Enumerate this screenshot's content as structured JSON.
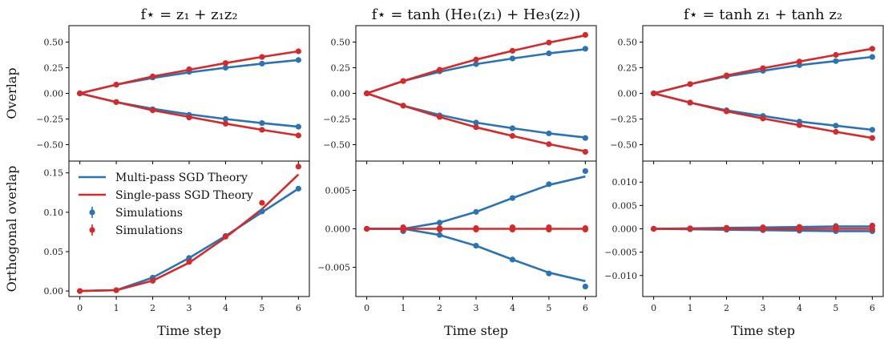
{
  "colors": {
    "multi": "#2a74b4",
    "single": "#d62a2a",
    "axis": "#000000"
  },
  "chart_data": [
    {
      "type": "line",
      "panel": "top-left",
      "title": "f⋆ = z₁ + z₁z₂",
      "xlabel": "",
      "ylabel": "Overlap",
      "x": [
        0,
        1,
        2,
        3,
        4,
        5,
        6
      ],
      "xlim": [
        -0.3,
        6.3
      ],
      "ylim": [
        -0.66,
        0.66
      ],
      "yticks": [
        -0.5,
        -0.25,
        0,
        0.25,
        0.5
      ],
      "ytick_labels": [
        "−0.50",
        "−0.25",
        "0.00",
        "0.25",
        "0.50"
      ],
      "series": [
        {
          "role": "multi-theory",
          "values": [
            0,
            0.085,
            0.15,
            0.205,
            0.25,
            0.29,
            0.325
          ]
        },
        {
          "role": "multi-theory",
          "values": [
            0,
            -0.085,
            -0.15,
            -0.205,
            -0.25,
            -0.29,
            -0.325
          ]
        },
        {
          "role": "single-theory",
          "values": [
            0,
            0.085,
            0.165,
            0.23,
            0.295,
            0.355,
            0.41
          ]
        },
        {
          "role": "single-theory",
          "values": [
            0,
            -0.085,
            -0.165,
            -0.23,
            -0.295,
            -0.355,
            -0.41
          ]
        },
        {
          "role": "multi-sim",
          "values": [
            0,
            0.085,
            0.155,
            0.21,
            0.25,
            0.29,
            0.325
          ]
        },
        {
          "role": "multi-sim",
          "values": [
            0,
            -0.085,
            -0.155,
            -0.21,
            -0.25,
            -0.29,
            -0.325
          ]
        },
        {
          "role": "single-sim",
          "values": [
            0,
            0.085,
            0.165,
            0.235,
            0.295,
            0.355,
            0.41
          ]
        },
        {
          "role": "single-sim",
          "values": [
            0,
            -0.085,
            -0.165,
            -0.235,
            -0.295,
            -0.355,
            -0.41
          ]
        }
      ]
    },
    {
      "type": "line",
      "panel": "top-middle",
      "title": "f⋆ = tanh (He₁(z₁) + He₃(z₂))",
      "xlabel": "",
      "ylabel": "",
      "x": [
        0,
        1,
        2,
        3,
        4,
        5,
        6
      ],
      "xlim": [
        -0.3,
        6.3
      ],
      "ylim": [
        -0.66,
        0.66
      ],
      "yticks": [
        -0.5,
        -0.25,
        0,
        0.25,
        0.5
      ],
      "ytick_labels": [
        "−0.50",
        "−0.25",
        "0.00",
        "0.25",
        "0.50"
      ],
      "series": [
        {
          "role": "multi-theory",
          "values": [
            0,
            0.12,
            0.21,
            0.285,
            0.34,
            0.39,
            0.43
          ]
        },
        {
          "role": "multi-theory",
          "values": [
            0,
            -0.12,
            -0.21,
            -0.285,
            -0.34,
            -0.39,
            -0.43
          ]
        },
        {
          "role": "single-theory",
          "values": [
            0,
            0.12,
            0.23,
            0.33,
            0.415,
            0.495,
            0.565
          ]
        },
        {
          "role": "single-theory",
          "values": [
            0,
            -0.12,
            -0.23,
            -0.33,
            -0.415,
            -0.495,
            -0.565
          ]
        },
        {
          "role": "multi-sim",
          "values": [
            0,
            0.12,
            0.215,
            0.285,
            0.34,
            0.39,
            0.435
          ]
        },
        {
          "role": "multi-sim",
          "values": [
            0,
            -0.12,
            -0.215,
            -0.285,
            -0.34,
            -0.39,
            -0.435
          ]
        },
        {
          "role": "single-sim",
          "values": [
            0,
            0.12,
            0.23,
            0.33,
            0.415,
            0.495,
            0.57
          ]
        },
        {
          "role": "single-sim",
          "values": [
            0,
            -0.12,
            -0.23,
            -0.33,
            -0.415,
            -0.495,
            -0.57
          ]
        }
      ]
    },
    {
      "type": "line",
      "panel": "top-right",
      "title": "f⋆ = tanh z₁ + tanh z₂",
      "xlabel": "",
      "ylabel": "",
      "x": [
        0,
        1,
        2,
        3,
        4,
        5,
        6
      ],
      "xlim": [
        -0.3,
        6.3
      ],
      "ylim": [
        -0.66,
        0.66
      ],
      "yticks": [
        -0.5,
        -0.25,
        0,
        0.25,
        0.5
      ],
      "ytick_labels": [
        "−0.50",
        "−0.25",
        "0.00",
        "0.25",
        "0.50"
      ],
      "series": [
        {
          "role": "multi-theory",
          "values": [
            0,
            0.09,
            0.165,
            0.22,
            0.275,
            0.315,
            0.355
          ]
        },
        {
          "role": "multi-theory",
          "values": [
            0,
            -0.09,
            -0.165,
            -0.22,
            -0.275,
            -0.315,
            -0.355
          ]
        },
        {
          "role": "single-theory",
          "values": [
            0,
            0.09,
            0.175,
            0.245,
            0.31,
            0.375,
            0.435
          ]
        },
        {
          "role": "single-theory",
          "values": [
            0,
            -0.09,
            -0.175,
            -0.245,
            -0.31,
            -0.375,
            -0.435
          ]
        },
        {
          "role": "multi-sim",
          "values": [
            0,
            0.09,
            0.165,
            0.22,
            0.275,
            0.315,
            0.355
          ]
        },
        {
          "role": "multi-sim",
          "values": [
            0,
            -0.09,
            -0.165,
            -0.22,
            -0.275,
            -0.315,
            -0.355
          ]
        },
        {
          "role": "single-sim",
          "values": [
            0,
            0.09,
            0.175,
            0.245,
            0.31,
            0.375,
            0.435
          ]
        },
        {
          "role": "single-sim",
          "values": [
            0,
            -0.09,
            -0.175,
            -0.245,
            -0.31,
            -0.375,
            -0.435
          ]
        }
      ]
    },
    {
      "type": "line",
      "panel": "bottom-left",
      "title": "",
      "xlabel": "Time step",
      "ylabel": "Orthogonal overlap",
      "x": [
        0,
        1,
        2,
        3,
        4,
        5,
        6
      ],
      "xlim": [
        -0.3,
        6.3
      ],
      "ylim": [
        -0.007,
        0.165
      ],
      "yticks": [
        0,
        0.05,
        0.1,
        0.15
      ],
      "ytick_labels": [
        "0.00",
        "0.05",
        "0.10",
        "0.15"
      ],
      "xticks": [
        0,
        1,
        2,
        3,
        4,
        5,
        6
      ],
      "xtick_labels": [
        "0",
        "1",
        "2",
        "3",
        "4",
        "5",
        "6"
      ],
      "legend": {
        "position": "upper-left",
        "entries": [
          "Multi-pass SGD Theory",
          "Single-pass SGD Theory",
          "Simulations",
          "Simulations"
        ]
      },
      "series": [
        {
          "role": "multi-theory",
          "name": "Multi-pass SGD Theory",
          "values": [
            0,
            0.001,
            0.017,
            0.042,
            0.07,
            0.1,
            0.13
          ]
        },
        {
          "role": "single-theory",
          "name": "Single-pass SGD Theory",
          "values": [
            0,
            0.001,
            0.013,
            0.036,
            0.068,
            0.104,
            0.148
          ]
        },
        {
          "role": "multi-sim",
          "name": "Simulations",
          "values": [
            0,
            0.001,
            0.017,
            0.042,
            0.07,
            0.101,
            0.13
          ]
        },
        {
          "role": "single-sim",
          "name": "Simulations",
          "values": [
            0,
            0.001,
            0.013,
            0.037,
            0.069,
            0.112,
            0.158
          ]
        }
      ]
    },
    {
      "type": "line",
      "panel": "bottom-middle",
      "title": "",
      "xlabel": "Time step",
      "ylabel": "",
      "x": [
        0,
        1,
        2,
        3,
        4,
        5,
        6
      ],
      "xlim": [
        -0.3,
        6.3
      ],
      "ylim": [
        -0.0088,
        0.0088
      ],
      "yticks": [
        -0.005,
        0,
        0.005
      ],
      "ytick_labels": [
        "−0.005",
        "0.000",
        "0.005"
      ],
      "xticks": [
        0,
        1,
        2,
        3,
        4,
        5,
        6
      ],
      "xtick_labels": [
        "0",
        "1",
        "2",
        "3",
        "4",
        "5",
        "6"
      ],
      "series": [
        {
          "role": "multi-theory",
          "values": [
            0,
            0,
            0.0008,
            0.0022,
            0.004,
            0.0057,
            0.0068
          ]
        },
        {
          "role": "multi-theory",
          "values": [
            0,
            0,
            -0.0008,
            -0.0022,
            -0.004,
            -0.0057,
            -0.0068
          ]
        },
        {
          "role": "single-theory",
          "values": [
            0,
            0,
            0,
            0,
            0,
            0,
            0
          ]
        },
        {
          "role": "multi-sim",
          "values": [
            0,
            -0.0003,
            0.0008,
            0.0022,
            0.004,
            0.0058,
            0.0075
          ]
        },
        {
          "role": "multi-sim",
          "values": [
            0,
            -0.0003,
            -0.0008,
            -0.0022,
            -0.004,
            -0.0058,
            -0.0075
          ]
        },
        {
          "role": "single-sim",
          "values": [
            0,
            0.0002,
            0.0001,
            0.0001,
            0.0002,
            0.0002,
            0.0001
          ]
        },
        {
          "role": "single-sim",
          "values": [
            0,
            -0.0001,
            -0.0001,
            -0.0001,
            -0.0001,
            -0.0001,
            -0.0001
          ]
        }
      ]
    },
    {
      "type": "line",
      "panel": "bottom-right",
      "title": "",
      "xlabel": "Time step",
      "ylabel": "",
      "x": [
        0,
        1,
        2,
        3,
        4,
        5,
        6
      ],
      "xlim": [
        -0.3,
        6.3
      ],
      "ylim": [
        -0.0145,
        0.0145
      ],
      "yticks": [
        -0.01,
        -0.005,
        0,
        0.005,
        0.01
      ],
      "ytick_labels": [
        "−0.010",
        "−0.005",
        "0.000",
        "0.005",
        "0.010"
      ],
      "xticks": [
        0,
        1,
        2,
        3,
        4,
        5,
        6
      ],
      "xtick_labels": [
        "0",
        "1",
        "2",
        "3",
        "4",
        "5",
        "6"
      ],
      "series": [
        {
          "role": "multi-theory",
          "values": [
            0,
            0.0001,
            0.0002,
            0.0003,
            0.0004,
            0.0005,
            0.0005
          ]
        },
        {
          "role": "multi-theory",
          "values": [
            0,
            -0.0001,
            -0.0002,
            -0.0003,
            -0.0004,
            -0.0005,
            -0.0005
          ]
        },
        {
          "role": "single-theory",
          "values": [
            0,
            0,
            0,
            0,
            0,
            0,
            0
          ]
        },
        {
          "role": "multi-sim",
          "values": [
            0,
            0.0001,
            0.0002,
            0.0003,
            0.0004,
            0.0006,
            0.0006
          ]
        },
        {
          "role": "multi-sim",
          "values": [
            0,
            -0.0001,
            -0.0002,
            -0.0003,
            -0.0004,
            -0.0005,
            -0.0005
          ]
        },
        {
          "role": "single-sim",
          "values": [
            0,
            0.0001,
            0.0002,
            0.0003,
            0.0004,
            0.0004,
            0.0007
          ]
        },
        {
          "role": "single-sim",
          "values": [
            0,
            0,
            0,
            -0.0001,
            -0.0001,
            -0.0001,
            -0.0001
          ]
        }
      ]
    }
  ]
}
